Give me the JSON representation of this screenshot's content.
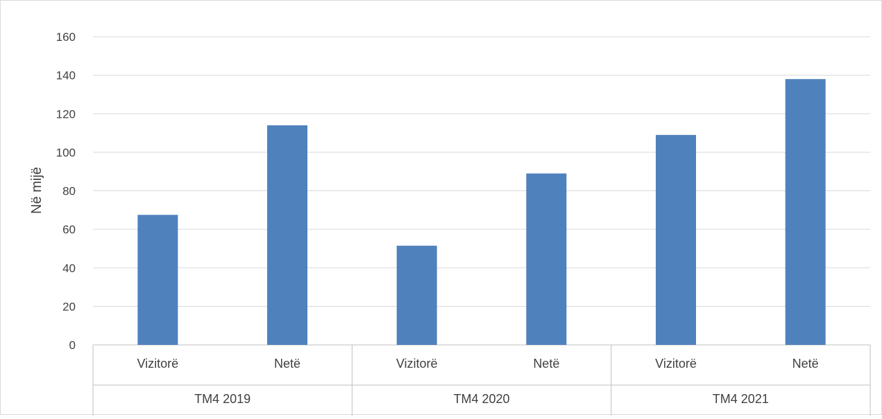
{
  "chart_data": {
    "type": "bar",
    "title": "",
    "ylabel": "Në mijë",
    "xlabel": "",
    "ylim": [
      0,
      160
    ],
    "yticks": [
      0,
      20,
      40,
      60,
      80,
      100,
      120,
      140,
      160
    ],
    "groups": [
      {
        "label": "TM4 2019",
        "categories": [
          "Vizitorë",
          "Netë"
        ],
        "values": [
          67.5,
          114
        ]
      },
      {
        "label": "TM4 2020",
        "categories": [
          "Vizitorë",
          "Netë"
        ],
        "values": [
          51.5,
          89
        ]
      },
      {
        "label": "TM4 2021",
        "categories": [
          "Vizitorë",
          "Netë"
        ],
        "values": [
          109,
          138
        ]
      }
    ],
    "bar_color": "#4f81bd",
    "grid": true,
    "legend": "none"
  }
}
